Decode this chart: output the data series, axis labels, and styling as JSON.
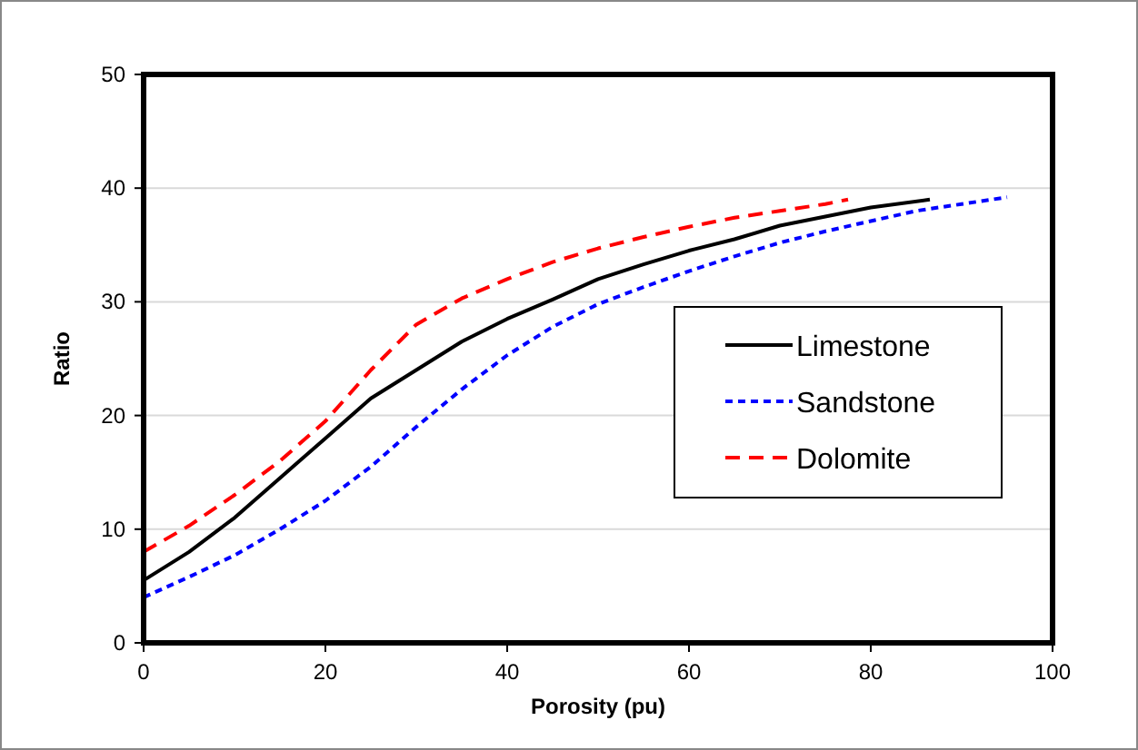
{
  "chart_data": {
    "type": "line",
    "xlabel": "Porosity (pu)",
    "ylabel": "Ratio",
    "xlim": [
      0,
      100
    ],
    "xticks": [
      0,
      20,
      40,
      60,
      80,
      100
    ],
    "ylim": [
      0,
      50
    ],
    "yticks": [
      0,
      10,
      20,
      30,
      40,
      50
    ],
    "grid": "y",
    "legend": "right",
    "marker": "none",
    "series": [
      {
        "name": "Limestone",
        "color": "#000000",
        "line_style": "solid",
        "x": [
          0,
          5,
          10,
          15,
          20,
          25,
          30,
          35,
          40,
          45,
          50,
          55,
          60,
          65,
          70,
          75,
          80,
          86.5
        ],
        "values": [
          5.5,
          8,
          11,
          14.5,
          18,
          21.5,
          24,
          26.5,
          28.5,
          30.2,
          32,
          33.3,
          34.5,
          35.5,
          36.7,
          37.5,
          38.3,
          39
        ]
      },
      {
        "name": "Sandstone",
        "color": "#0000ff",
        "line_style": "dotted",
        "x": [
          0,
          5,
          10,
          15,
          20,
          25,
          30,
          35,
          40,
          45,
          50,
          55,
          60,
          65,
          70,
          75,
          80,
          85,
          90,
          95
        ],
        "values": [
          4,
          5.8,
          7.7,
          10,
          12.5,
          15.5,
          19,
          22.3,
          25.3,
          27.8,
          29.8,
          31.3,
          32.7,
          34,
          35.2,
          36.2,
          37.1,
          38,
          38.6,
          39.2
        ]
      },
      {
        "name": "Dolomite",
        "color": "#ff0000",
        "line_style": "dashed",
        "x": [
          0,
          5,
          10,
          15,
          20,
          25,
          30,
          35,
          40,
          45,
          50,
          55,
          60,
          65,
          70,
          75,
          77.5
        ],
        "values": [
          8,
          10.3,
          13,
          16,
          19.5,
          24,
          28,
          30.3,
          32,
          33.5,
          34.7,
          35.7,
          36.6,
          37.4,
          38,
          38.6,
          39
        ]
      }
    ]
  }
}
